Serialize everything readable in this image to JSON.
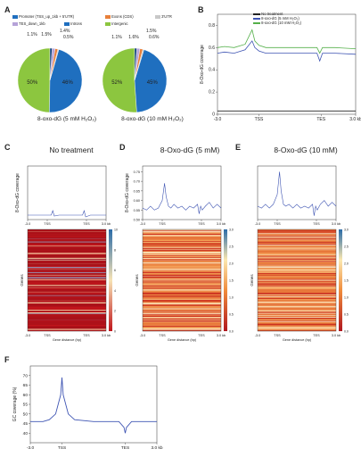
{
  "panels": {
    "A": "A",
    "B": "B",
    "C": "C",
    "D": "D",
    "E": "E",
    "F": "F"
  },
  "colors": {
    "promoter": "#1f6fbf",
    "tes_down": "#b6a3d8",
    "exons": "#e8803a",
    "introns": "#1f6fbf",
    "utr3": "#c8c8c8",
    "intergenic": "#8cc63f",
    "no_treatment": "#222222",
    "oxo5": "#3f55b3",
    "oxo10": "#55b04a",
    "heat_low": "#c0151b",
    "heat_mid": "#f4a259",
    "heat_high": "#2b6ca8"
  },
  "legend_A": [
    {
      "label": "Promoter (TSS_up_1kb + 5'UTR)",
      "color_key": "promoter"
    },
    {
      "label": "Exons (CDS)",
      "color_key": "exons"
    },
    {
      "label": "3'UTR",
      "color_key": "utr3"
    },
    {
      "label": "TES_down_1kb",
      "color_key": "tes_down"
    },
    {
      "label": "Introns",
      "color_key": "introns"
    },
    {
      "label": "Intergenic",
      "color_key": "intergenic"
    }
  ],
  "chart_data": [
    {
      "id": "A1",
      "type": "pie",
      "title": "8-oxo-dG (5 mM H₂O₂)",
      "slices": [
        {
          "label": "Intergenic",
          "value": 50.0,
          "text": "50%"
        },
        {
          "label": "Introns",
          "value": 46.0,
          "text": "46%"
        },
        {
          "label": "Promoter",
          "value": 1.1,
          "text": "1.1%"
        },
        {
          "label": "TES_down_1kb",
          "value": 1.5,
          "text": "1.5%"
        },
        {
          "label": "Exons",
          "value": 1.4,
          "text": "1.4%"
        },
        {
          "label": "3'UTR",
          "value": 0.5,
          "text": "0.5%"
        }
      ]
    },
    {
      "id": "A2",
      "type": "pie",
      "title": "8-oxo-dG (10 mM H₂O₂)",
      "slices": [
        {
          "label": "Intergenic",
          "value": 52.0,
          "text": "52%"
        },
        {
          "label": "Introns",
          "value": 45.0,
          "text": "45%"
        },
        {
          "label": "Promoter",
          "value": 1.1,
          "text": "1.1%"
        },
        {
          "label": "TES_down_1kb",
          "value": 1.6,
          "text": "1.6%"
        },
        {
          "label": "Exons",
          "value": 1.5,
          "text": "1.5%"
        },
        {
          "label": "3'UTR",
          "value": 0.6,
          "text": "0.6%"
        }
      ]
    },
    {
      "id": "B",
      "type": "line",
      "ylabel": "8-Oxo-dG coverage",
      "ylim": [
        0,
        0.9
      ],
      "yticks": [
        "0",
        "0.2",
        "0.4",
        "0.6",
        "0.8"
      ],
      "xticks": [
        "-3.0",
        "TSS",
        "TES",
        "3.0 kb"
      ],
      "series": [
        {
          "name": "No treatment",
          "color_key": "no_treatment",
          "x": [
            0,
            0.25,
            0.5,
            0.75,
            1
          ],
          "y": [
            0.03,
            0.03,
            0.03,
            0.03,
            0.03
          ]
        },
        {
          "name": "8-oxo-dG (5 mM H₂O₂)",
          "color_key": "oxo5",
          "x": [
            0,
            0.05,
            0.12,
            0.2,
            0.25,
            0.27,
            0.3,
            0.35,
            0.45,
            0.6,
            0.72,
            0.74,
            0.76,
            0.85,
            1
          ],
          "y": [
            0.55,
            0.56,
            0.55,
            0.58,
            0.66,
            0.6,
            0.57,
            0.55,
            0.55,
            0.55,
            0.55,
            0.48,
            0.55,
            0.55,
            0.54
          ]
        },
        {
          "name": "8-oxo-dG (10 mM H₂O₂)",
          "color_key": "oxo10",
          "x": [
            0,
            0.05,
            0.12,
            0.2,
            0.25,
            0.27,
            0.3,
            0.35,
            0.45,
            0.6,
            0.72,
            0.74,
            0.76,
            0.85,
            1
          ],
          "y": [
            0.6,
            0.61,
            0.6,
            0.63,
            0.76,
            0.66,
            0.62,
            0.6,
            0.6,
            0.6,
            0.6,
            0.55,
            0.6,
            0.6,
            0.59
          ]
        }
      ]
    },
    {
      "id": "C",
      "type": "line",
      "title": "No treatment",
      "ylabel": "8-Oxo-dG coverage",
      "xticks": [
        "-3.0",
        "TSS",
        "TES",
        "3.0 kb"
      ],
      "series": [
        {
          "name": "",
          "color_key": "oxo5",
          "x": [
            0,
            0.1,
            0.2,
            0.3,
            0.32,
            0.34,
            0.4,
            0.5,
            0.6,
            0.7,
            0.72,
            0.74,
            0.8,
            0.9,
            1
          ],
          "y": [
            0.05,
            0.05,
            0.05,
            0.05,
            0.1,
            0.04,
            0.05,
            0.05,
            0.05,
            0.05,
            0.1,
            0.03,
            0.05,
            0.05,
            0.05
          ]
        }
      ]
    },
    {
      "id": "D",
      "type": "line",
      "title": "8-Oxo-dG (5 mM)",
      "ylabel": "8-Oxo-dG coverage",
      "yticks": [
        "0.50",
        "0.55",
        "0.60",
        "0.65",
        "0.70",
        "0.75"
      ],
      "ylim": [
        0.5,
        0.78
      ],
      "xticks": [
        "-3.0",
        "TSS",
        "TES",
        "3.0 kb"
      ],
      "series": [
        {
          "name": "",
          "color_key": "oxo5",
          "x": [
            0,
            0.05,
            0.1,
            0.15,
            0.2,
            0.25,
            0.28,
            0.3,
            0.33,
            0.36,
            0.4,
            0.45,
            0.5,
            0.55,
            0.6,
            0.65,
            0.7,
            0.72,
            0.74,
            0.76,
            0.8,
            0.85,
            0.9,
            0.95,
            1
          ],
          "y": [
            0.56,
            0.55,
            0.57,
            0.55,
            0.56,
            0.6,
            0.69,
            0.62,
            0.57,
            0.56,
            0.58,
            0.56,
            0.57,
            0.55,
            0.57,
            0.56,
            0.58,
            0.53,
            0.57,
            0.55,
            0.57,
            0.59,
            0.56,
            0.58,
            0.56
          ]
        }
      ]
    },
    {
      "id": "E",
      "type": "line",
      "title": "8-Oxo-dG (10 mM)",
      "xticks": [
        "-3.0",
        "TSS",
        "TES",
        "3.0 kb"
      ],
      "series": [
        {
          "name": "",
          "color_key": "oxo5",
          "x": [
            0,
            0.05,
            0.1,
            0.15,
            0.2,
            0.25,
            0.28,
            0.3,
            0.33,
            0.36,
            0.4,
            0.45,
            0.5,
            0.55,
            0.6,
            0.65,
            0.7,
            0.72,
            0.74,
            0.76,
            0.8,
            0.85,
            0.9,
            0.95,
            1
          ],
          "y": [
            0.57,
            0.56,
            0.58,
            0.56,
            0.58,
            0.63,
            0.75,
            0.65,
            0.58,
            0.57,
            0.58,
            0.56,
            0.58,
            0.56,
            0.57,
            0.56,
            0.58,
            0.52,
            0.57,
            0.55,
            0.58,
            0.6,
            0.57,
            0.59,
            0.57
          ]
        }
      ]
    },
    {
      "id": "F",
      "type": "line",
      "ylabel": "GC coverage (%)",
      "ylim": [
        35,
        75
      ],
      "yticks": [
        "40",
        "45",
        "50",
        "55",
        "60",
        "65",
        "70"
      ],
      "xticks": [
        "-3.0",
        "TSS",
        "TES",
        "3.0 kb"
      ],
      "series": [
        {
          "name": "",
          "color_key": "oxo5",
          "x": [
            0,
            0.1,
            0.15,
            0.2,
            0.24,
            0.25,
            0.26,
            0.3,
            0.35,
            0.5,
            0.7,
            0.74,
            0.75,
            0.76,
            0.8,
            0.9,
            1
          ],
          "y": [
            46,
            46,
            47,
            50,
            60,
            69,
            60,
            50,
            47,
            46,
            46,
            43,
            40,
            43,
            46,
            46,
            46
          ]
        }
      ]
    }
  ],
  "heatmaps": {
    "ylabel": "Genes",
    "xlabel": "Gene distance (bp)",
    "xticks": [
      "-3.0",
      "TSS",
      "TES",
      "3.0 kb"
    ],
    "C_scale": [
      "0",
      "2",
      "4",
      "6",
      "8",
      "10"
    ],
    "D_scale": [
      "0.0",
      "0.5",
      "1.0",
      "1.5",
      "2.0",
      "2.5",
      "3.0"
    ],
    "E_scale": [
      "0.0",
      "0.5",
      "1.0",
      "1.5",
      "2.0",
      "2.5",
      "3.0"
    ]
  }
}
